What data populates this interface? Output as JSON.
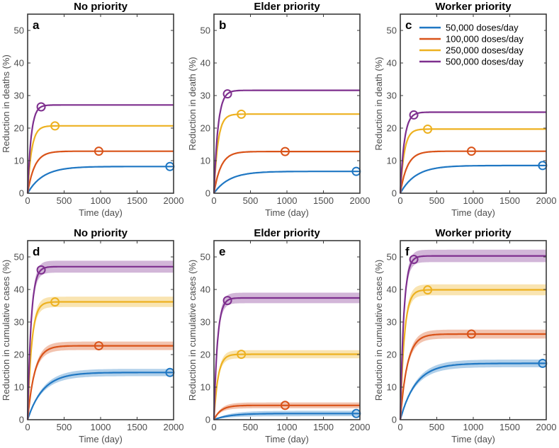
{
  "chart_data": [
    {
      "type": "line",
      "panel": "a",
      "title": "No priority",
      "xlabel": "Time (day)",
      "ylabel": "Reduction in deaths (%)",
      "xlim": [
        0,
        2000
      ],
      "ylim": [
        0,
        55
      ],
      "xticks": [
        "0",
        "500",
        "1000",
        "1500",
        "2000"
      ],
      "yticks": [
        "0",
        "10",
        "20",
        "30",
        "40",
        "50"
      ],
      "band": false,
      "series": [
        {
          "name": "50,000 doses/day",
          "plateau": 8.2,
          "tau": 210,
          "marker_x": 1950
        },
        {
          "name": "100,000 doses/day",
          "plateau": 12.9,
          "tau": 95,
          "marker_x": 975
        },
        {
          "name": "250,000 doses/day",
          "plateau": 20.7,
          "tau": 55,
          "marker_x": 375
        },
        {
          "name": "500,000 doses/day",
          "plateau": 27.1,
          "tau": 48,
          "marker_x": 185
        }
      ]
    },
    {
      "type": "line",
      "panel": "b",
      "title": "Elder priority",
      "xlabel": "Time (day)",
      "ylabel": "Reduction in death (%)",
      "xlim": [
        0,
        2000
      ],
      "ylim": [
        0,
        55
      ],
      "xticks": [
        "0",
        "500",
        "1000",
        "1500",
        "2000"
      ],
      "yticks": [
        "0",
        "10",
        "20",
        "30",
        "40",
        "50"
      ],
      "band": false,
      "series": [
        {
          "name": "50,000 doses/day",
          "plateau": 6.7,
          "tau": 210,
          "marker_x": 1950
        },
        {
          "name": "100,000 doses/day",
          "plateau": 12.8,
          "tau": 95,
          "marker_x": 975
        },
        {
          "name": "250,000 doses/day",
          "plateau": 24.3,
          "tau": 55,
          "marker_x": 375
        },
        {
          "name": "500,000 doses/day",
          "plateau": 31.6,
          "tau": 55,
          "marker_x": 185
        }
      ]
    },
    {
      "type": "line",
      "panel": "c",
      "title": "Worker priority",
      "xlabel": "Time (day)",
      "ylabel": "Reduction in death (%)",
      "xlim": [
        0,
        2000
      ],
      "ylim": [
        0,
        55
      ],
      "xticks": [
        "0",
        "500",
        "1000",
        "1500",
        "2000"
      ],
      "yticks": [
        "0",
        "10",
        "20",
        "30",
        "40",
        "50"
      ],
      "band": false,
      "legend": "top-right",
      "series": [
        {
          "name": "50,000 doses/day",
          "plateau": 8.5,
          "tau": 210,
          "marker_x": 1950
        },
        {
          "name": "100,000 doses/day",
          "plateau": 12.9,
          "tau": 95,
          "marker_x": 975
        },
        {
          "name": "250,000 doses/day",
          "plateau": 19.7,
          "tau": 55,
          "marker_x": 375
        },
        {
          "name": "500,000 doses/day",
          "plateau": 24.9,
          "tau": 55,
          "marker_x": 185
        }
      ]
    },
    {
      "type": "line",
      "panel": "d",
      "title": "No priority",
      "xlabel": "Time (day)",
      "ylabel": "Reduction in cumulative cases (%)",
      "xlim": [
        0,
        2000
      ],
      "ylim": [
        0,
        55
      ],
      "xticks": [
        "0",
        "500",
        "1000",
        "1500",
        "2000"
      ],
      "yticks": [
        "0",
        "10",
        "20",
        "30",
        "40",
        "50"
      ],
      "band": true,
      "series": [
        {
          "name": "50,000 doses/day",
          "plateau": 14.5,
          "tau": 210,
          "marker_x": 1950
        },
        {
          "name": "100,000 doses/day",
          "plateau": 22.7,
          "tau": 95,
          "marker_x": 975
        },
        {
          "name": "250,000 doses/day",
          "plateau": 36.2,
          "tau": 55,
          "marker_x": 375
        },
        {
          "name": "500,000 doses/day",
          "plateau": 47.0,
          "tau": 48,
          "marker_x": 185
        }
      ]
    },
    {
      "type": "line",
      "panel": "e",
      "title": "Elder priority",
      "xlabel": "Time (day)",
      "ylabel": "Reduction in cumulative cases (%)",
      "xlim": [
        0,
        2000
      ],
      "ylim": [
        0,
        55
      ],
      "xticks": [
        "0",
        "500",
        "1000",
        "1500",
        "2000"
      ],
      "yticks": [
        "0",
        "10",
        "20",
        "30",
        "40",
        "50"
      ],
      "band": true,
      "series": [
        {
          "name": "50,000 doses/day",
          "plateau": 1.9,
          "tau": 210,
          "marker_x": 1950
        },
        {
          "name": "100,000 doses/day",
          "plateau": 4.4,
          "tau": 95,
          "marker_x": 975
        },
        {
          "name": "250,000 doses/day",
          "plateau": 20.1,
          "tau": 55,
          "marker_x": 375
        },
        {
          "name": "500,000 doses/day",
          "plateau": 37.4,
          "tau": 48,
          "marker_x": 185
        }
      ]
    },
    {
      "type": "line",
      "panel": "f",
      "title": "Worker priority",
      "xlabel": "Time (day)",
      "ylabel": "Reduction in cumulative cases (%)",
      "xlim": [
        0,
        2000
      ],
      "ylim": [
        0,
        55
      ],
      "xticks": [
        "0",
        "500",
        "1000",
        "1500",
        "2000"
      ],
      "yticks": [
        "0",
        "10",
        "20",
        "30",
        "40",
        "50"
      ],
      "band": true,
      "series": [
        {
          "name": "50,000 doses/day",
          "plateau": 17.3,
          "tau": 210,
          "marker_x": 1950
        },
        {
          "name": "100,000 doses/day",
          "plateau": 26.3,
          "tau": 95,
          "marker_x": 975
        },
        {
          "name": "250,000 doses/day",
          "plateau": 39.9,
          "tau": 55,
          "marker_x": 375
        },
        {
          "name": "500,000 doses/day",
          "plateau": 50.3,
          "tau": 48,
          "marker_x": 185
        }
      ]
    }
  ],
  "series_colors": [
    "#1f77c3",
    "#d95319",
    "#edb120",
    "#7e2f8e"
  ],
  "legend": {
    "entries": [
      "50,000 doses/day",
      "100,000 doses/day",
      "250,000 doses/day",
      "500,000 doses/day"
    ]
  }
}
